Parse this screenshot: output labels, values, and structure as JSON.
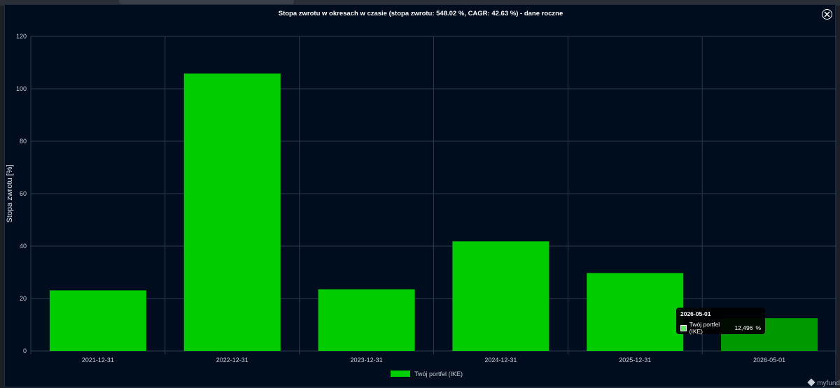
{
  "modal": {
    "title": "Stopa zwrotu w okresach w czasie (stopa zwrotu: 548.02 %, CAGR: 42.63 %) - dane roczne"
  },
  "tooltip": {
    "title": "2026-05-01",
    "series": "Twój portfel (IKE)",
    "value": "12,496",
    "unit": "%"
  },
  "brand": {
    "text": "myfund"
  },
  "colors": {
    "bar": "#00cc00",
    "bar_highlight": "#009a00",
    "background": "#000d1e",
    "grid": "#2a3a50"
  },
  "chart_data": {
    "type": "bar",
    "categories": [
      "2021-12-31",
      "2022-12-31",
      "2023-12-31",
      "2024-12-31",
      "2025-12-31",
      "2026-05-01"
    ],
    "series": [
      {
        "name": "Twój portfel (IKE)",
        "values": [
          23.1,
          105.8,
          23.5,
          41.8,
          29.7,
          12.496
        ]
      }
    ],
    "ylabel": "Stopa zwrotu [%]",
    "ylim": [
      0,
      120
    ],
    "yticks": [
      0,
      20,
      40,
      60,
      80,
      100,
      120
    ],
    "grid": true,
    "legend_position": "bottom",
    "highlighted_category": "2026-05-01"
  }
}
